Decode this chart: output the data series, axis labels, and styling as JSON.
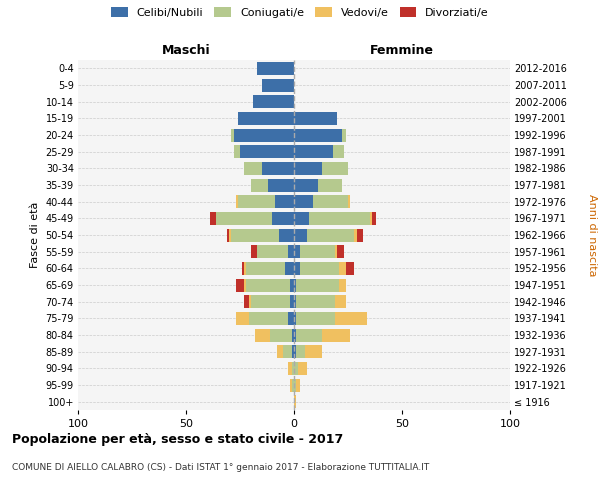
{
  "age_groups": [
    "100+",
    "95-99",
    "90-94",
    "85-89",
    "80-84",
    "75-79",
    "70-74",
    "65-69",
    "60-64",
    "55-59",
    "50-54",
    "45-49",
    "40-44",
    "35-39",
    "30-34",
    "25-29",
    "20-24",
    "15-19",
    "10-14",
    "5-9",
    "0-4"
  ],
  "birth_years": [
    "≤ 1916",
    "1917-1921",
    "1922-1926",
    "1927-1931",
    "1932-1936",
    "1937-1941",
    "1942-1946",
    "1947-1951",
    "1952-1956",
    "1957-1961",
    "1962-1966",
    "1967-1971",
    "1972-1976",
    "1977-1981",
    "1982-1986",
    "1987-1991",
    "1992-1996",
    "1997-2001",
    "2002-2006",
    "2007-2011",
    "2012-2016"
  ],
  "colors": {
    "celibi": "#3d6fa8",
    "coniugati": "#b5c98e",
    "vedovi": "#f0c060",
    "divorziati": "#c0302a"
  },
  "maschi": {
    "celibi": [
      0,
      0,
      0,
      1,
      1,
      3,
      2,
      2,
      4,
      3,
      7,
      10,
      9,
      12,
      15,
      25,
      28,
      26,
      19,
      15,
      17
    ],
    "coniugati": [
      0,
      1,
      1,
      4,
      10,
      18,
      18,
      20,
      18,
      14,
      22,
      26,
      17,
      8,
      8,
      3,
      1,
      0,
      0,
      0,
      0
    ],
    "vedovi": [
      0,
      1,
      2,
      3,
      7,
      6,
      1,
      1,
      1,
      0,
      1,
      0,
      1,
      0,
      0,
      0,
      0,
      0,
      0,
      0,
      0
    ],
    "divorziati": [
      0,
      0,
      0,
      0,
      0,
      0,
      2,
      4,
      1,
      3,
      1,
      3,
      0,
      0,
      0,
      0,
      0,
      0,
      0,
      0,
      0
    ]
  },
  "femmine": {
    "celibi": [
      0,
      0,
      0,
      1,
      1,
      1,
      1,
      1,
      3,
      3,
      6,
      7,
      9,
      11,
      13,
      18,
      22,
      20,
      0,
      0,
      0
    ],
    "coniugati": [
      0,
      1,
      2,
      4,
      12,
      18,
      18,
      20,
      18,
      16,
      22,
      28,
      16,
      11,
      12,
      5,
      2,
      0,
      0,
      0,
      0
    ],
    "vedovi": [
      1,
      2,
      4,
      8,
      13,
      15,
      5,
      3,
      3,
      1,
      1,
      1,
      1,
      0,
      0,
      0,
      0,
      0,
      0,
      0,
      0
    ],
    "divorziati": [
      0,
      0,
      0,
      0,
      0,
      0,
      0,
      0,
      4,
      3,
      3,
      2,
      0,
      0,
      0,
      0,
      0,
      0,
      0,
      0,
      0
    ]
  },
  "title": "Popolazione per età, sesso e stato civile - 2017",
  "subtitle": "COMUNE DI AIELLO CALABRO (CS) - Dati ISTAT 1° gennaio 2017 - Elaborazione TUTTITALIA.IT",
  "xlabel_left": "Maschi",
  "xlabel_right": "Femmine",
  "ylabel": "Fasce di età",
  "ylabel_right": "Anni di nascita",
  "xlim": 100,
  "legend_labels": [
    "Celibi/Nubili",
    "Coniugati/e",
    "Vedovi/e",
    "Divorziati/e"
  ],
  "bg_color": "#f5f5f5"
}
